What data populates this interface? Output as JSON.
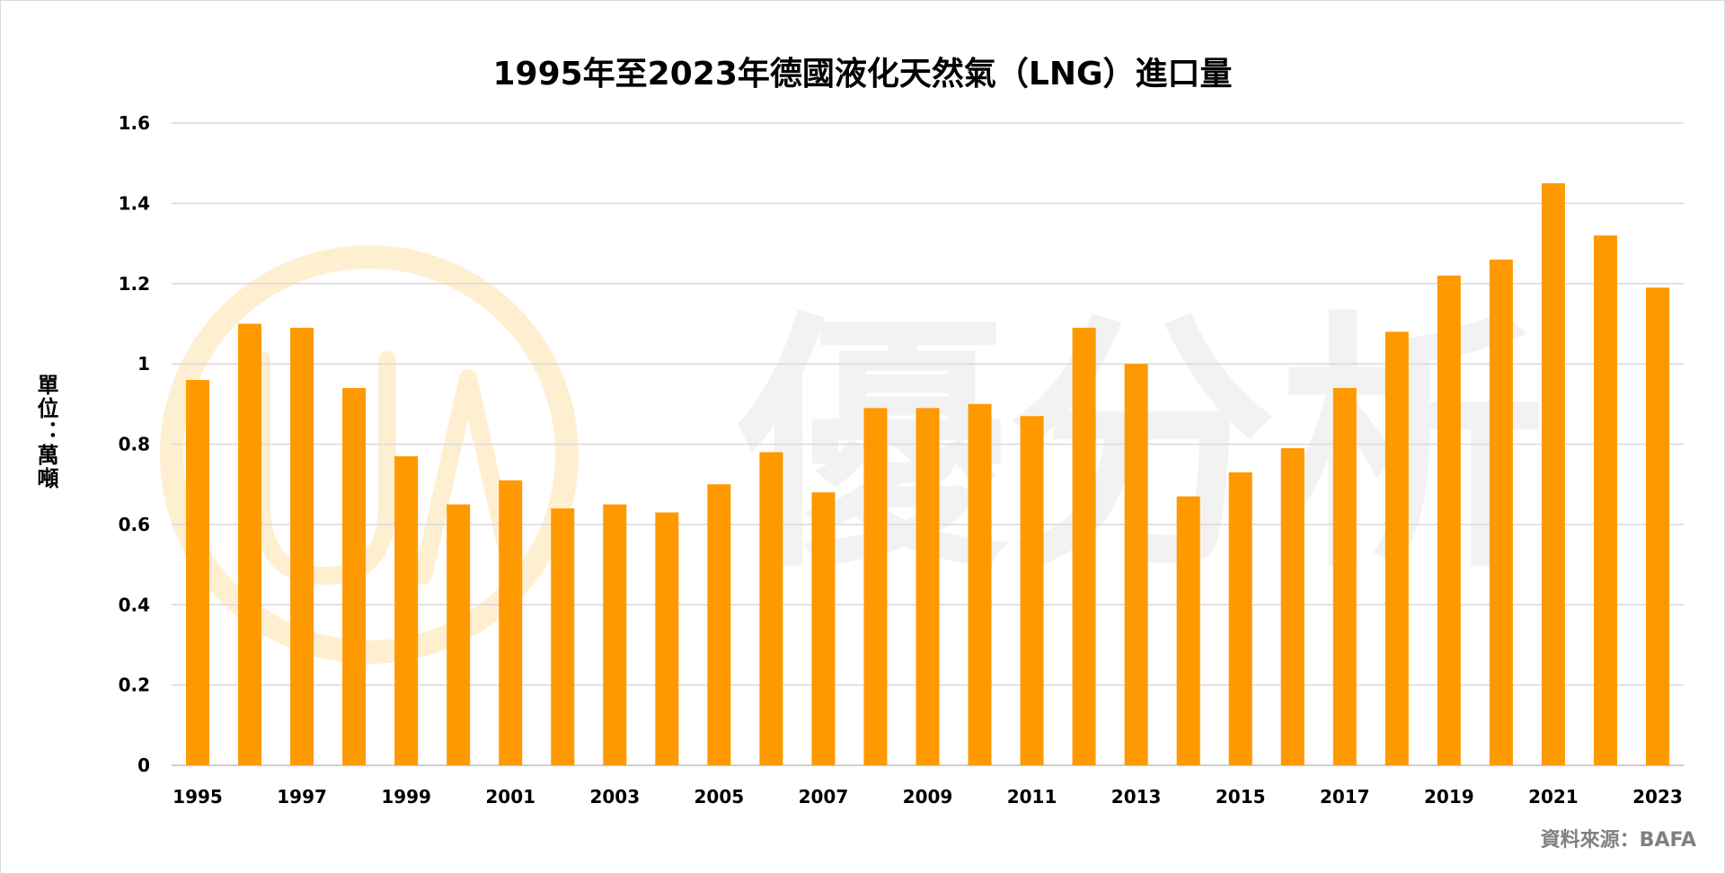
{
  "colors": {
    "bar": "#FF9900",
    "gridline": "#D9D9D9",
    "axis_line": "#BFBFBF",
    "watermark_logo": "#FFE9C2",
    "watermark_text": "#E9E9E9",
    "source_text": "#808080"
  },
  "watermark": {
    "text": "優分析"
  },
  "source": {
    "text": "資料來源：BAFA"
  },
  "chart_data": {
    "type": "bar",
    "title": "1995年至2023年德國液化天然氣（LNG）進口量",
    "xlabel": "",
    "ylabel": "單位：萬噸",
    "ylim": [
      0,
      1.6
    ],
    "yticks": [
      "0",
      "0.2",
      "0.4",
      "0.6",
      "0.8",
      "1",
      "1.2",
      "1.4",
      "1.6"
    ],
    "grid": true,
    "legend": "none",
    "categories": [
      "1995",
      "1996",
      "1997",
      "1998",
      "1999",
      "2000",
      "2001",
      "2002",
      "2003",
      "2004",
      "2005",
      "2006",
      "2007",
      "2008",
      "2009",
      "2010",
      "2011",
      "2012",
      "2013",
      "2014",
      "2015",
      "2016",
      "2017",
      "2018",
      "2019",
      "2020",
      "2021",
      "2022",
      "2023"
    ],
    "xtick_labels": [
      "1995",
      "",
      "1997",
      "",
      "1999",
      "",
      "2001",
      "",
      "2003",
      "",
      "2005",
      "",
      "2007",
      "",
      "2009",
      "",
      "2011",
      "",
      "2013",
      "",
      "2015",
      "",
      "2017",
      "",
      "2019",
      "",
      "2021",
      "",
      "2023"
    ],
    "values": [
      0.96,
      1.1,
      1.09,
      0.94,
      0.77,
      0.65,
      0.71,
      0.64,
      0.65,
      0.63,
      0.7,
      0.78,
      0.68,
      0.89,
      0.89,
      0.9,
      0.87,
      1.09,
      1.0,
      0.67,
      0.73,
      0.79,
      0.94,
      1.08,
      1.22,
      1.26,
      1.45,
      1.32,
      1.19
    ]
  }
}
